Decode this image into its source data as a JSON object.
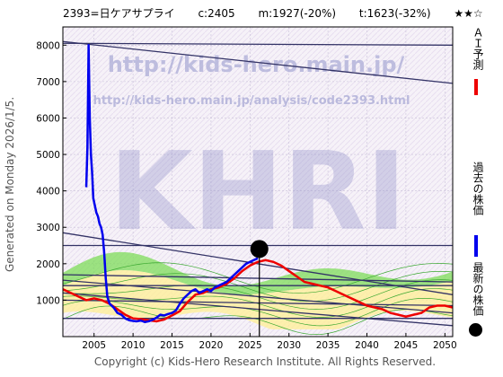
{
  "header": {
    "code_name": "2393=日ケアサプライ",
    "current": "c:2405",
    "mid": "m:1927(-20%)",
    "target": "t:1623(-32%)",
    "stars": "★★☆"
  },
  "side_label": "Generated on Monday 2026/1/5.",
  "footer": "Copyright (c) Kids-Hero Research Institute. All Rights Reserved.",
  "watermarks": {
    "url_main": "http://kids-hero.main.jp/",
    "url_sub": "http://kids-hero.main.jp/analysis/code2393.html",
    "big": "KHRI"
  },
  "legend": {
    "ai_forecast": "ＡＩ予測",
    "past_price": "過去の株価",
    "latest_price": "最新の株価"
  },
  "colors": {
    "past_price": "#0000ee",
    "ai_forecast": "#ee0000",
    "latest": "#000000",
    "band_green": "#7ddc5a",
    "band_yellow": "#ffef9a",
    "trend_line": "#333366"
  },
  "chart_data": {
    "type": "line",
    "xlim": [
      2001,
      2051
    ],
    "ylim": [
      0,
      8500
    ],
    "x_ticks": [
      2005,
      2010,
      2015,
      2020,
      2025,
      2030,
      2035,
      2040,
      2045,
      2050
    ],
    "y_ticks": [
      1000,
      2000,
      3000,
      4000,
      5000,
      6000,
      7000,
      8000
    ],
    "series": [
      {
        "name": "過去の株価",
        "points": [
          [
            2004.0,
            4100
          ],
          [
            2004.15,
            5200
          ],
          [
            2004.3,
            8000
          ],
          [
            2004.45,
            6000
          ],
          [
            2004.6,
            5000
          ],
          [
            2004.75,
            4500
          ],
          [
            2004.9,
            3800
          ],
          [
            2005.1,
            3600
          ],
          [
            2005.3,
            3400
          ],
          [
            2005.5,
            3300
          ],
          [
            2005.7,
            3100
          ],
          [
            2005.9,
            3000
          ],
          [
            2006.1,
            2800
          ],
          [
            2006.3,
            2300
          ],
          [
            2006.5,
            1600
          ],
          [
            2006.7,
            1100
          ],
          [
            2007.0,
            900
          ],
          [
            2007.5,
            800
          ],
          [
            2008.0,
            650
          ],
          [
            2008.5,
            600
          ],
          [
            2009.0,
            500
          ],
          [
            2009.5,
            450
          ],
          [
            2010.0,
            430
          ],
          [
            2010.5,
            420
          ],
          [
            2011.0,
            440
          ],
          [
            2011.5,
            400
          ],
          [
            2012.0,
            420
          ],
          [
            2012.5,
            460
          ],
          [
            2013.0,
            520
          ],
          [
            2013.5,
            600
          ],
          [
            2014.0,
            580
          ],
          [
            2014.5,
            620
          ],
          [
            2015.0,
            650
          ],
          [
            2015.5,
            720
          ],
          [
            2016.0,
            900
          ],
          [
            2016.5,
            1050
          ],
          [
            2017.0,
            1150
          ],
          [
            2017.5,
            1250
          ],
          [
            2018.0,
            1300
          ],
          [
            2018.5,
            1200
          ],
          [
            2019.0,
            1250
          ],
          [
            2019.5,
            1300
          ],
          [
            2020.0,
            1250
          ],
          [
            2020.5,
            1350
          ],
          [
            2021.0,
            1400
          ],
          [
            2021.5,
            1450
          ],
          [
            2022.0,
            1500
          ],
          [
            2022.5,
            1600
          ],
          [
            2023.0,
            1700
          ],
          [
            2023.5,
            1800
          ],
          [
            2024.0,
            1900
          ],
          [
            2024.5,
            2000
          ],
          [
            2025.0,
            2050
          ],
          [
            2025.5,
            2100
          ],
          [
            2026.0,
            2150
          ]
        ]
      },
      {
        "name": "ＡＩ予測",
        "points": [
          [
            2001,
            1300
          ],
          [
            2002,
            1200
          ],
          [
            2003,
            1100
          ],
          [
            2004,
            1000
          ],
          [
            2005,
            1050
          ],
          [
            2006,
            1000
          ],
          [
            2007,
            900
          ],
          [
            2008,
            750
          ],
          [
            2009,
            600
          ],
          [
            2010,
            500
          ],
          [
            2011,
            480
          ],
          [
            2012,
            450
          ],
          [
            2013,
            420
          ],
          [
            2014,
            470
          ],
          [
            2015,
            580
          ],
          [
            2016,
            700
          ],
          [
            2017,
            950
          ],
          [
            2018,
            1150
          ],
          [
            2019,
            1200
          ],
          [
            2020,
            1300
          ],
          [
            2021,
            1350
          ],
          [
            2022,
            1450
          ],
          [
            2023,
            1600
          ],
          [
            2024,
            1800
          ],
          [
            2025,
            1950
          ],
          [
            2026,
            2050
          ],
          [
            2027,
            2100
          ],
          [
            2028,
            2050
          ],
          [
            2029,
            1950
          ],
          [
            2030,
            1800
          ],
          [
            2031,
            1650
          ],
          [
            2032,
            1500
          ],
          [
            2033,
            1450
          ],
          [
            2034,
            1400
          ],
          [
            2035,
            1350
          ],
          [
            2036,
            1250
          ],
          [
            2037,
            1150
          ],
          [
            2038,
            1050
          ],
          [
            2039,
            950
          ],
          [
            2040,
            850
          ],
          [
            2041,
            800
          ],
          [
            2042,
            750
          ],
          [
            2043,
            650
          ],
          [
            2044,
            600
          ],
          [
            2045,
            550
          ],
          [
            2046,
            600
          ],
          [
            2047,
            650
          ],
          [
            2048,
            800
          ],
          [
            2049,
            850
          ],
          [
            2050,
            850
          ],
          [
            2051,
            800
          ]
        ]
      }
    ],
    "latest_point": {
      "x": 2026.2,
      "y": 2405
    }
  }
}
